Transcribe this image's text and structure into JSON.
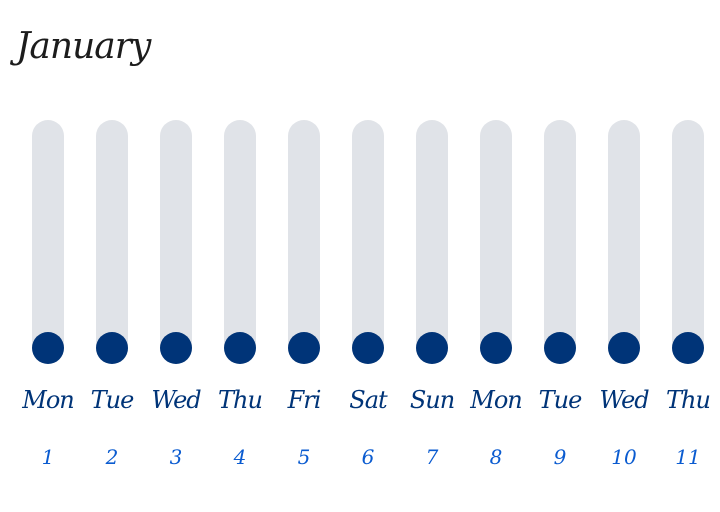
{
  "calendar": {
    "month": "January",
    "days": [
      {
        "weekday": "Mon",
        "date": "1"
      },
      {
        "weekday": "Tue",
        "date": "2"
      },
      {
        "weekday": "Wed",
        "date": "3"
      },
      {
        "weekday": "Thu",
        "date": "4"
      },
      {
        "weekday": "Fri",
        "date": "5"
      },
      {
        "weekday": "Sat",
        "date": "6"
      },
      {
        "weekday": "Sun",
        "date": "7"
      },
      {
        "weekday": "Mon",
        "date": "8"
      },
      {
        "weekday": "Tue",
        "date": "9"
      },
      {
        "weekday": "Wed",
        "date": "10"
      },
      {
        "weekday": "Thu",
        "date": "11"
      }
    ]
  },
  "colors": {
    "track": "#e0e3e8",
    "dot": "#003478",
    "weekday_text": "#003478",
    "date_text": "#0a5bd0"
  }
}
